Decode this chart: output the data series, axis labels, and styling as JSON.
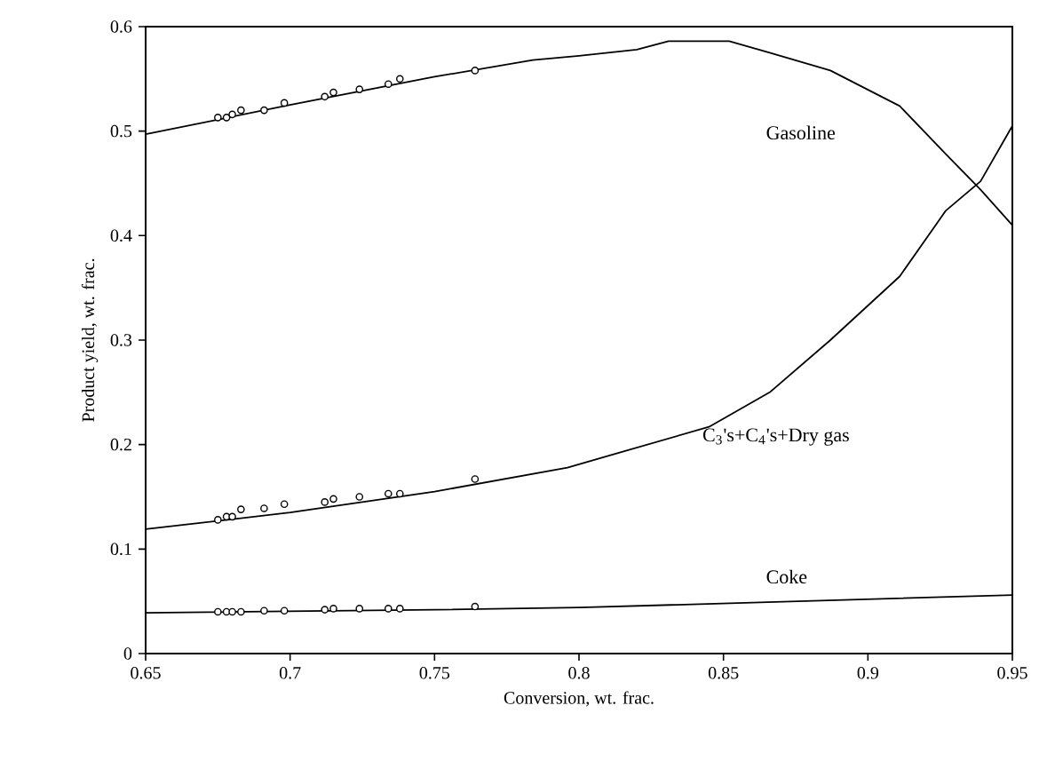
{
  "chart_data": {
    "type": "line",
    "xlabel": "Conversion, wt. frac.",
    "ylabel": "Product yield, wt. frac.",
    "xlim": [
      0.65,
      0.95
    ],
    "xticks": [
      0.65,
      0.7,
      0.75,
      0.8,
      0.85,
      0.9,
      0.95
    ],
    "ylim": [
      0,
      0.6
    ],
    "yticks": [
      0,
      0.1,
      0.2,
      0.3,
      0.4,
      0.5,
      0.6
    ],
    "grid": false,
    "legend": false,
    "series": [
      {
        "type": "line",
        "name": "Gasoline",
        "color": "#000000",
        "marker": "none",
        "line_style": "solid",
        "x": [
          0.65,
          0.7,
          0.75,
          0.784,
          0.8,
          0.82,
          0.831,
          0.852,
          0.866,
          0.887,
          0.911,
          0.927,
          0.939,
          0.95
        ],
        "values": [
          0.497,
          0.525,
          0.552,
          0.568,
          0.572,
          0.578,
          0.586,
          0.586,
          0.575,
          0.558,
          0.524,
          0.478,
          0.444,
          0.41
        ]
      },
      {
        "type": "line",
        "name": "C$_{3}$'s+C$_{4}$'s+Dry gas",
        "color": "#000000",
        "marker": "none",
        "line_style": "solid",
        "x": [
          0.65,
          0.7,
          0.75,
          0.796,
          0.845,
          0.866,
          0.887,
          0.911,
          0.927,
          0.939,
          0.95
        ],
        "values": [
          0.119,
          0.135,
          0.155,
          0.178,
          0.217,
          0.25,
          0.3,
          0.361,
          0.424,
          0.452,
          0.505
        ]
      },
      {
        "type": "line",
        "name": "Coke",
        "color": "#000000",
        "marker": "none",
        "line_style": "solid",
        "x": [
          0.65,
          0.75,
          0.8,
          0.95
        ],
        "values": [
          0.039,
          0.042,
          0.044,
          0.056
        ]
      },
      {
        "type": "scatter",
        "color": "#000000",
        "marker": "circle",
        "x": [
          0.675,
          0.678,
          0.68,
          0.683,
          0.691,
          0.698,
          0.712,
          0.715,
          0.724,
          0.734,
          0.738,
          0.764
        ],
        "values": [
          0.513,
          0.513,
          0.516,
          0.52,
          0.52,
          0.527,
          0.533,
          0.537,
          0.54,
          0.545,
          0.55,
          0.558
        ]
      },
      {
        "type": "scatter",
        "color": "#000000",
        "marker": "circle",
        "x": [
          0.675,
          0.678,
          0.68,
          0.683,
          0.691,
          0.698,
          0.712,
          0.715,
          0.724,
          0.734,
          0.738,
          0.764
        ],
        "values": [
          0.128,
          0.131,
          0.131,
          0.138,
          0.139,
          0.143,
          0.145,
          0.148,
          0.15,
          0.153,
          0.153,
          0.167
        ]
      },
      {
        "type": "scatter",
        "color": "#000000",
        "marker": "circle",
        "x": [
          0.675,
          0.678,
          0.68,
          0.683,
          0.691,
          0.698,
          0.712,
          0.715,
          0.724,
          0.734,
          0.738,
          0.764
        ],
        "values": [
          0.04,
          0.04,
          0.04,
          0.04,
          0.041,
          0.041,
          0.042,
          0.043,
          0.043,
          0.043,
          0.043,
          0.045
        ]
      }
    ]
  }
}
